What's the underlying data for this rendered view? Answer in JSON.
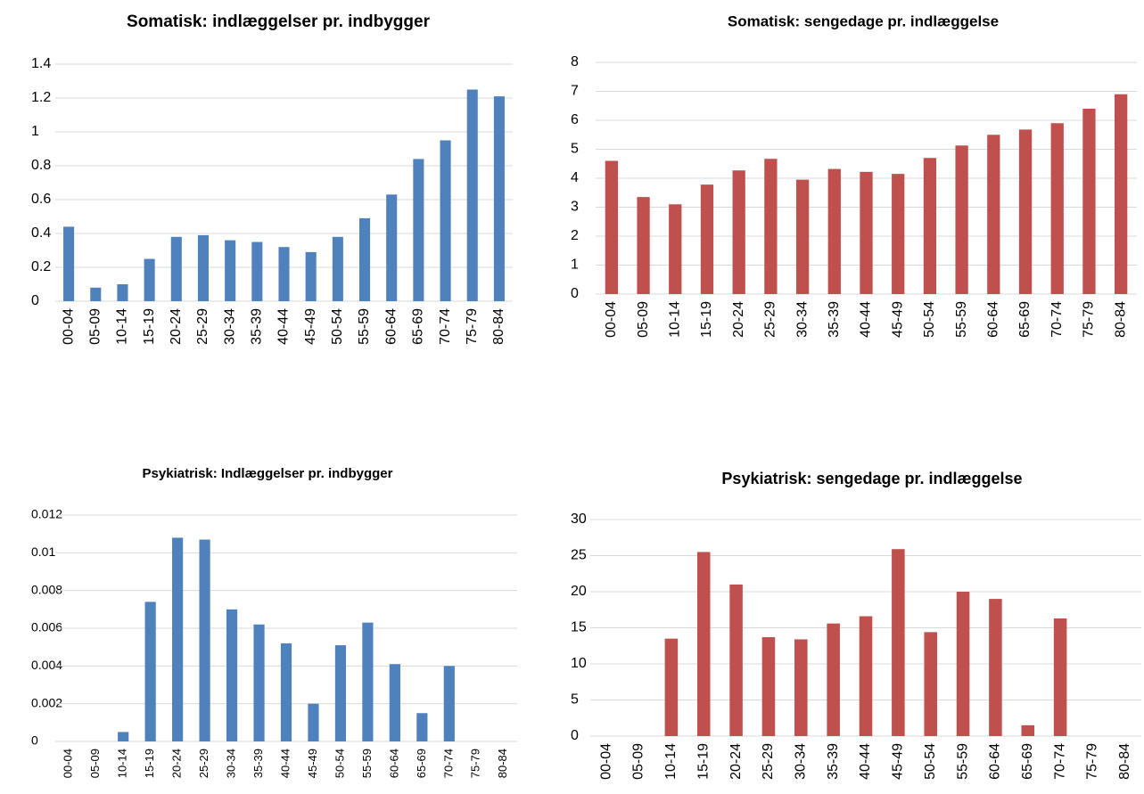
{
  "chart_data": [
    {
      "type": "bar",
      "title": "Somatisk: indlæggelser pr. indbygger",
      "color": "#4f81bd",
      "categories": [
        "00-04",
        "05-09",
        "10-14",
        "15-19",
        "20-24",
        "25-29",
        "30-34",
        "35-39",
        "40-44",
        "45-49",
        "50-54",
        "55-59",
        "60-64",
        "65-69",
        "70-74",
        "75-79",
        "80-84"
      ],
      "values": [
        0.44,
        0.08,
        0.1,
        0.25,
        0.38,
        0.39,
        0.36,
        0.35,
        0.32,
        0.29,
        0.38,
        0.49,
        0.63,
        0.84,
        0.95,
        1.25,
        1.21
      ],
      "ylim": [
        0,
        1.4
      ],
      "yticks": [
        0,
        0.2,
        0.4,
        0.6,
        0.8,
        1,
        1.2,
        1.4
      ],
      "grid": true
    },
    {
      "type": "bar",
      "title": "Somatisk: sengedage pr. indlæggelse",
      "color": "#c0504d",
      "categories": [
        "00-04",
        "05-09",
        "10-14",
        "15-19",
        "20-24",
        "25-29",
        "30-34",
        "35-39",
        "40-44",
        "45-49",
        "50-54",
        "55-59",
        "60-64",
        "65-69",
        "70-74",
        "75-79",
        "80-84"
      ],
      "values": [
        4.6,
        3.35,
        3.1,
        3.78,
        4.27,
        4.67,
        3.95,
        4.32,
        4.22,
        4.15,
        4.7,
        5.13,
        5.5,
        5.68,
        5.9,
        6.4,
        6.9
      ],
      "ylim": [
        0,
        8
      ],
      "yticks": [
        0,
        1,
        2,
        3,
        4,
        5,
        6,
        7,
        8
      ],
      "grid": true
    },
    {
      "type": "bar",
      "title": "Psykiatrisk: Indlæggelser pr. indbygger",
      "color": "#4f81bd",
      "categories": [
        "00-04",
        "05-09",
        "10-14",
        "15-19",
        "20-24",
        "25-29",
        "30-34",
        "35-39",
        "40-44",
        "45-49",
        "50-54",
        "55-59",
        "60-64",
        "65-69",
        "70-74",
        "75-79",
        "80-84"
      ],
      "values": [
        0,
        0,
        0.0005,
        0.0074,
        0.0108,
        0.0107,
        0.007,
        0.0062,
        0.0052,
        0.002,
        0.0051,
        0.0063,
        0.0041,
        0.0015,
        0.004,
        0,
        0
      ],
      "ylim": [
        0,
        0.012
      ],
      "yticks": [
        0,
        0.002,
        0.004,
        0.006,
        0.008,
        0.01,
        0.012
      ],
      "grid": true
    },
    {
      "type": "bar",
      "title": "Psykiatrisk: sengedage pr. indlæggelse",
      "color": "#c0504d",
      "categories": [
        "00-04",
        "05-09",
        "10-14",
        "15-19",
        "20-24",
        "25-29",
        "30-34",
        "35-39",
        "40-44",
        "45-49",
        "50-54",
        "55-59",
        "60-64",
        "65-69",
        "70-74",
        "75-79",
        "80-84"
      ],
      "values": [
        0,
        0,
        13.5,
        25.5,
        21,
        13.7,
        13.4,
        15.6,
        16.6,
        25.9,
        14.4,
        20,
        19,
        1.5,
        16.3,
        0,
        0
      ],
      "ylim": [
        0,
        30
      ],
      "yticks": [
        0,
        5,
        10,
        15,
        20,
        25,
        30
      ],
      "grid": true
    }
  ]
}
